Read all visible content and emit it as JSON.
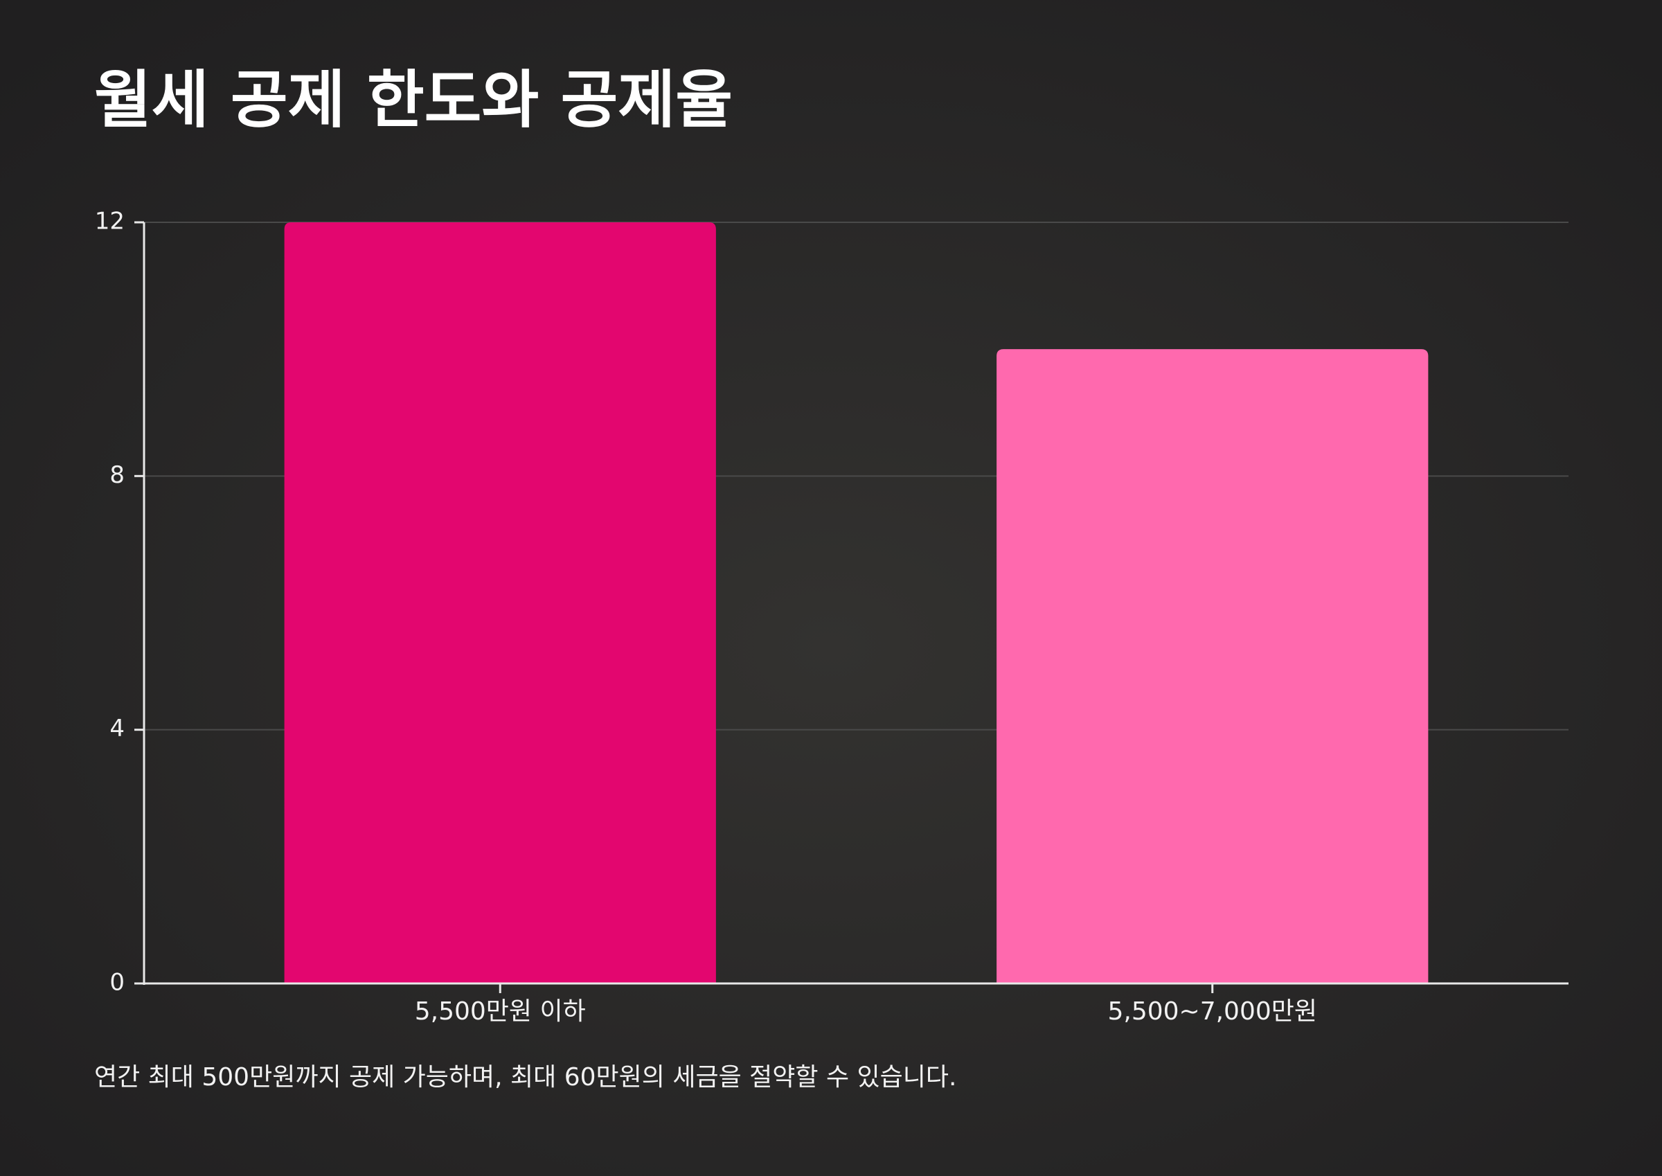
{
  "chart_data": {
    "type": "bar",
    "title": "월세 공제 한도와 공제율",
    "categories": [
      "5,500만원 이하",
      "5,500~7,000만원"
    ],
    "values": [
      12,
      10
    ],
    "colors": [
      "#e3066f",
      "#ff69ae"
    ],
    "ylim": [
      0,
      12
    ],
    "yticks": [
      0,
      4,
      8,
      12
    ],
    "grid": true,
    "caption": "연간 최대 500만원까지 공제 가능하며, 최대 60만원의 세금을 절약할 수 있습니다."
  }
}
